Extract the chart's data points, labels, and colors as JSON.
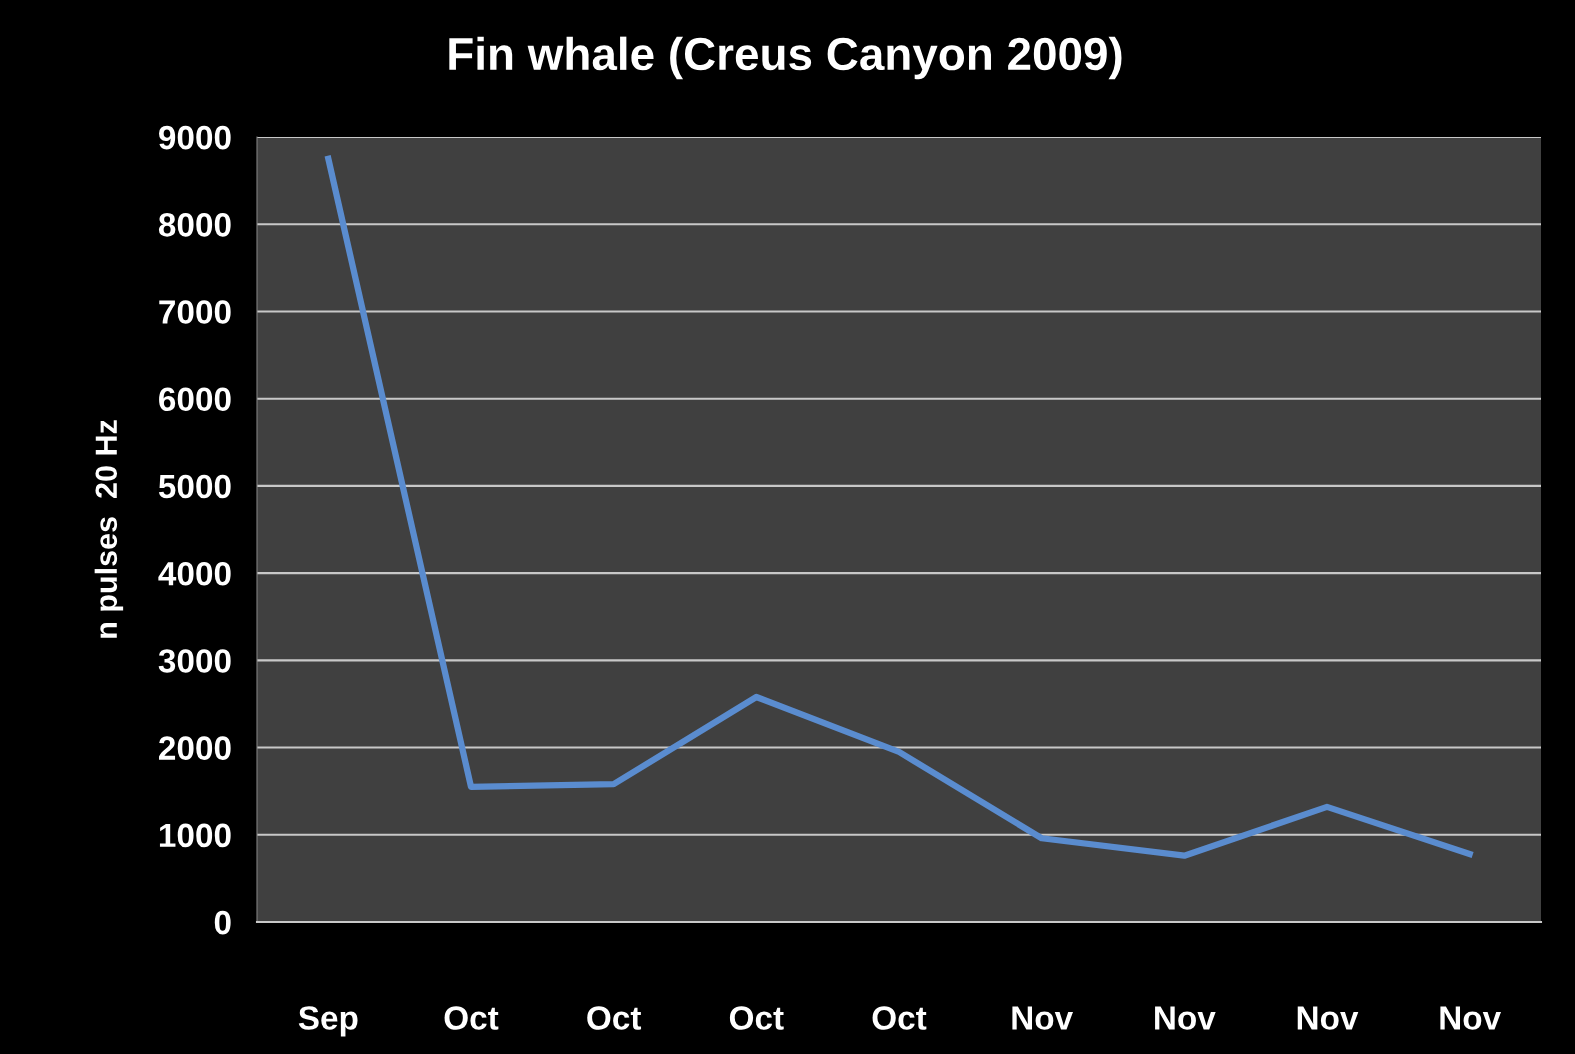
{
  "chart_data": {
    "type": "line",
    "title": "Fin whale (Creus Canyon 2009)",
    "ylabel": "n pulses  20 Hz",
    "categories": [
      "Sep",
      "Oct",
      "Oct",
      "Oct",
      "Oct",
      "Nov",
      "Nov",
      "Nov",
      "Nov"
    ],
    "series": [
      {
        "color": "#5a8ccf",
        "values": [
          8750,
          1550,
          1580,
          2580,
          1950,
          960,
          760,
          1320,
          780
        ]
      }
    ],
    "ylim": [
      0,
      9000
    ],
    "yticks": [
      0,
      1000,
      2000,
      3000,
      4000,
      5000,
      6000,
      7000,
      8000,
      9000
    ],
    "grid": "y",
    "marker": "none",
    "line_style": "solid"
  }
}
